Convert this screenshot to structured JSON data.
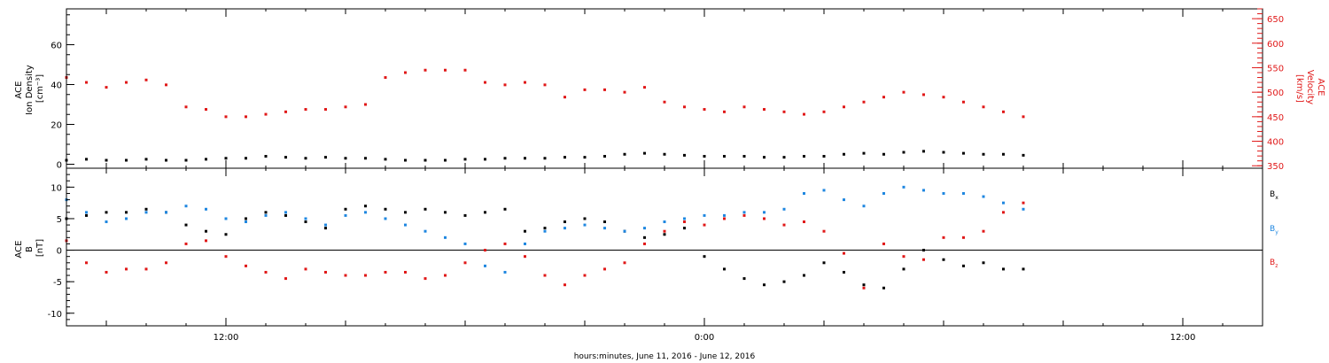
{
  "colors": {
    "black": "#000000",
    "blue": "#1f87e0",
    "red": "#e01818"
  },
  "xlabel": "hours:minutes, June 11, 2016 - June 12, 2016",
  "x_ticks": [
    {
      "label": "12:00",
      "hour": 12
    },
    {
      "label": "0:00",
      "hour": 24
    },
    {
      "label": "12:00",
      "hour": 36
    }
  ],
  "x_range_hours": [
    8,
    38
  ],
  "chart_data": [
    {
      "type": "scatter",
      "panel": "top",
      "left_axis": {
        "title": [
          "ACE",
          "Ion Density",
          "[cm⁻³]"
        ],
        "ylim": [
          -2,
          78
        ],
        "ticks": [
          0,
          20,
          40,
          60
        ],
        "minor_step": 5
      },
      "right_axis": {
        "title": [
          "ACE",
          "Velocity",
          "[km/s]"
        ],
        "ylim": [
          345,
          670
        ],
        "ticks": [
          350,
          400,
          450,
          500,
          550,
          600,
          650
        ],
        "minor_step": 10
      },
      "series": [
        {
          "name": "",
          "axis": "left",
          "color": "black",
          "x": [
            8.0,
            8.5,
            9.0,
            9.5,
            10.0,
            10.5,
            11.0,
            11.5,
            12.0,
            12.5,
            13.0,
            13.5,
            14.0,
            14.5,
            15.0,
            15.5,
            16.0,
            16.5,
            17.0,
            17.5,
            18.0,
            18.5,
            19.0,
            19.5,
            20.0,
            20.5,
            21.0,
            21.5,
            22.0,
            22.5,
            23.0,
            23.5,
            24.0,
            24.5,
            25.0,
            25.5,
            26.0,
            26.5,
            27.0,
            27.5,
            28.0,
            28.5,
            29.0,
            29.5,
            30.0,
            30.5,
            31.0,
            31.5,
            32.0
          ],
          "y": [
            2.0,
            2.5,
            2.0,
            2.0,
            2.5,
            2.0,
            2.0,
            2.5,
            3.0,
            3.0,
            4.0,
            3.5,
            3.0,
            3.5,
            3.0,
            3.0,
            2.5,
            2.0,
            2.0,
            2.0,
            2.5,
            2.5,
            3.0,
            3.0,
            3.0,
            3.5,
            3.5,
            4.0,
            5.0,
            5.5,
            5.0,
            4.5,
            4.0,
            4.0,
            4.0,
            3.5,
            3.5,
            4.0,
            4.0,
            5.0,
            5.5,
            5.0,
            6.0,
            6.5,
            6.0,
            5.5,
            5.0,
            5.0,
            4.5
          ]
        },
        {
          "name": "",
          "axis": "right",
          "color": "red",
          "x": [
            8.0,
            8.5,
            9.0,
            9.5,
            10.0,
            10.5,
            11.0,
            11.5,
            12.0,
            12.5,
            13.0,
            13.5,
            14.0,
            14.5,
            15.0,
            15.5,
            16.0,
            16.5,
            17.0,
            17.5,
            18.0,
            18.5,
            19.0,
            19.5,
            20.0,
            20.5,
            21.0,
            21.5,
            22.0,
            22.5,
            23.0,
            23.5,
            24.0,
            24.5,
            25.0,
            25.5,
            26.0,
            26.5,
            27.0,
            27.5,
            28.0,
            28.5,
            29.0,
            29.5,
            30.0,
            30.5,
            31.0,
            31.5,
            32.0
          ],
          "y": [
            530,
            520,
            510,
            520,
            525,
            515,
            470,
            465,
            450,
            450,
            455,
            460,
            465,
            465,
            470,
            475,
            530,
            540,
            545,
            545,
            545,
            520,
            515,
            520,
            515,
            490,
            505,
            505,
            500,
            510,
            480,
            470,
            465,
            460,
            470,
            465,
            460,
            455,
            460,
            470,
            480,
            490,
            500,
            495,
            490,
            480,
            470,
            460,
            450
          ]
        }
      ]
    },
    {
      "type": "scatter",
      "panel": "bottom",
      "left_axis": {
        "title": [
          "ACE",
          "B",
          "[nT]"
        ],
        "ylim": [
          -12,
          13
        ],
        "ticks": [
          -10,
          -5,
          0,
          5,
          10
        ],
        "minor_step": 1
      },
      "zero_line": true,
      "series": [
        {
          "name": "Bx",
          "color": "black",
          "x": [
            8.0,
            8.5,
            9.0,
            9.5,
            10.0,
            10.5,
            11.0,
            11.5,
            12.0,
            12.5,
            13.0,
            13.5,
            14.0,
            14.5,
            15.0,
            15.5,
            16.0,
            16.5,
            17.0,
            17.5,
            18.0,
            18.5,
            19.0,
            19.5,
            20.0,
            20.5,
            21.0,
            21.5,
            22.0,
            22.5,
            23.0,
            23.5,
            24.0,
            24.5,
            25.0,
            25.5,
            26.0,
            26.5,
            27.0,
            27.5,
            28.0,
            28.5,
            29.0,
            29.5,
            30.0,
            30.5,
            31.0,
            31.5,
            32.0
          ],
          "y": [
            5.0,
            5.5,
            6.0,
            6.0,
            6.5,
            6.0,
            4.0,
            3.0,
            2.5,
            5.0,
            6.0,
            5.5,
            4.5,
            3.5,
            6.5,
            7.0,
            6.5,
            6.0,
            6.5,
            6.0,
            5.5,
            6.0,
            6.5,
            3.0,
            3.5,
            4.5,
            5.0,
            4.5,
            3.0,
            2.0,
            2.5,
            3.5,
            -1.0,
            -3.0,
            -4.5,
            -5.5,
            -5.0,
            -4.0,
            -2.0,
            -3.5,
            -5.5,
            -6.0,
            -3.0,
            0.0,
            -1.5,
            -2.5,
            -2.0,
            -3.0,
            -3.0
          ]
        },
        {
          "name": "By",
          "color": "blue",
          "x": [
            8.0,
            8.5,
            9.0,
            9.5,
            10.0,
            10.5,
            11.0,
            11.5,
            12.0,
            12.5,
            13.0,
            13.5,
            14.0,
            14.5,
            15.0,
            15.5,
            16.0,
            16.5,
            17.0,
            17.5,
            18.0,
            18.5,
            19.0,
            19.5,
            20.0,
            20.5,
            21.0,
            21.5,
            22.0,
            22.5,
            23.0,
            23.5,
            24.0,
            24.5,
            25.0,
            25.5,
            26.0,
            26.5,
            27.0,
            27.5,
            28.0,
            28.5,
            29.0,
            29.5,
            30.0,
            30.5,
            31.0,
            31.5,
            32.0
          ],
          "y": [
            8.0,
            6.0,
            4.5,
            5.0,
            6.0,
            6.0,
            7.0,
            6.5,
            5.0,
            4.5,
            5.5,
            6.0,
            5.0,
            4.0,
            5.5,
            6.0,
            5.0,
            4.0,
            3.0,
            2.0,
            1.0,
            -2.5,
            -3.5,
            1.0,
            3.0,
            3.5,
            4.0,
            3.5,
            3.0,
            3.5,
            4.5,
            5.0,
            5.5,
            5.5,
            6.0,
            6.0,
            6.5,
            9.0,
            9.5,
            8.0,
            7.0,
            9.0,
            10.0,
            9.5,
            9.0,
            9.0,
            8.5,
            7.5,
            6.5
          ]
        },
        {
          "name": "Bz",
          "color": "red",
          "x": [
            8.0,
            8.5,
            9.0,
            9.5,
            10.0,
            10.5,
            11.0,
            11.5,
            12.0,
            12.5,
            13.0,
            13.5,
            14.0,
            14.5,
            15.0,
            15.5,
            16.0,
            16.5,
            17.0,
            17.5,
            18.0,
            18.5,
            19.0,
            19.5,
            20.0,
            20.5,
            21.0,
            21.5,
            22.0,
            22.5,
            23.0,
            23.5,
            24.0,
            24.5,
            25.0,
            25.5,
            26.0,
            26.5,
            27.0,
            27.5,
            28.0,
            28.5,
            29.0,
            29.5,
            30.0,
            30.5,
            31.0,
            31.5,
            32.0
          ],
          "y": [
            1.5,
            -2.0,
            -3.5,
            -3.0,
            -3.0,
            -2.0,
            1.0,
            1.5,
            -1.0,
            -2.5,
            -3.5,
            -4.5,
            -3.0,
            -3.5,
            -4.0,
            -4.0,
            -3.5,
            -3.5,
            -4.5,
            -4.0,
            -2.0,
            0.0,
            1.0,
            -1.0,
            -4.0,
            -5.5,
            -4.0,
            -3.0,
            -2.0,
            1.0,
            3.0,
            4.5,
            4.0,
            5.0,
            5.5,
            5.0,
            4.0,
            4.5,
            3.0,
            -0.5,
            -6.0,
            1.0,
            -1.0,
            -1.5,
            2.0,
            2.0,
            3.0,
            6.0,
            7.5
          ]
        }
      ]
    }
  ]
}
